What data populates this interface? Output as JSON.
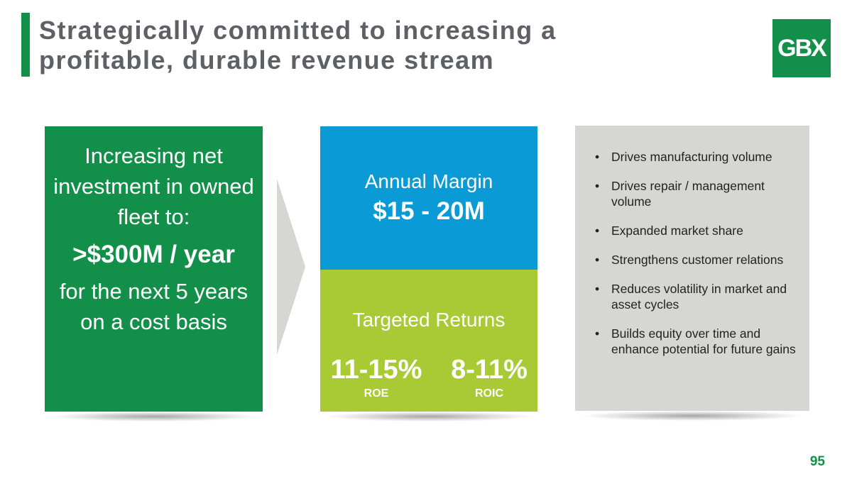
{
  "slide": {
    "title": "Strategically committed to increasing a profitable, durable revenue stream",
    "logo_text": "GBX",
    "page_number": "95"
  },
  "left_box": {
    "line1": "Increasing net investment in owned fleet to:",
    "highlight": ">$300M / year",
    "line2": "for the next 5 years on a cost basis"
  },
  "margin_box": {
    "label": "Annual Margin",
    "value": "$15 - 20M"
  },
  "returns_box": {
    "label": "Targeted Returns",
    "metrics": [
      {
        "value": "11-15%",
        "name": "ROE"
      },
      {
        "value": "8-11%",
        "name": "ROIC"
      }
    ]
  },
  "benefits": {
    "items": [
      "Drives manufacturing volume",
      "Drives repair / management volume",
      "Expanded market share",
      "Strengthens customer relations",
      "Reduces volatility in market and asset cycles",
      "Builds equity over time and enhance potential for future gains"
    ]
  },
  "colors": {
    "brand_green": "#12904a",
    "blue": "#0a9bd7",
    "lime": "#a9c935",
    "grey": "#d6d6d2",
    "title_grey": "#5f5f66"
  },
  "icons": {
    "arrow": "chevron-right-icon",
    "bullet": "bullet-icon"
  }
}
